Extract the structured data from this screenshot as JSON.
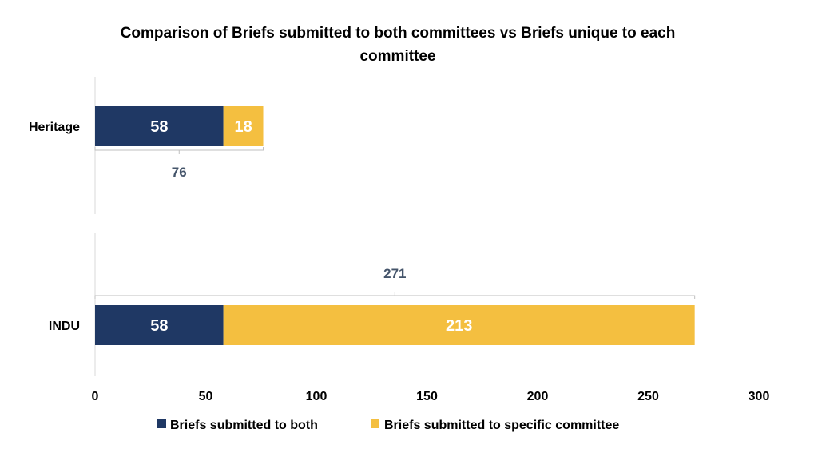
{
  "chart_data": {
    "type": "bar",
    "orientation": "horizontal",
    "stacked": true,
    "title_line1": "Comparison of Briefs submitted to both committees vs Briefs unique to each",
    "title_line2": "committee",
    "categories": [
      "Heritage",
      "INDU"
    ],
    "series": [
      {
        "name": "Briefs submitted to both",
        "values": [
          58,
          58
        ],
        "color": "#1f3864"
      },
      {
        "name": "Briefs submitted to specific committee",
        "values": [
          18,
          213
        ],
        "color": "#f4bf40"
      }
    ],
    "totals": [
      76,
      271
    ],
    "xlim": [
      0,
      300
    ],
    "x_ticks": [
      "0",
      "50",
      "100",
      "150",
      "200",
      "250",
      "300"
    ],
    "xlabel": "",
    "ylabel": "",
    "grid": false,
    "legend_position": "bottom",
    "total_label_color": "#44546a",
    "bracket_color": "#bfbfbf"
  }
}
